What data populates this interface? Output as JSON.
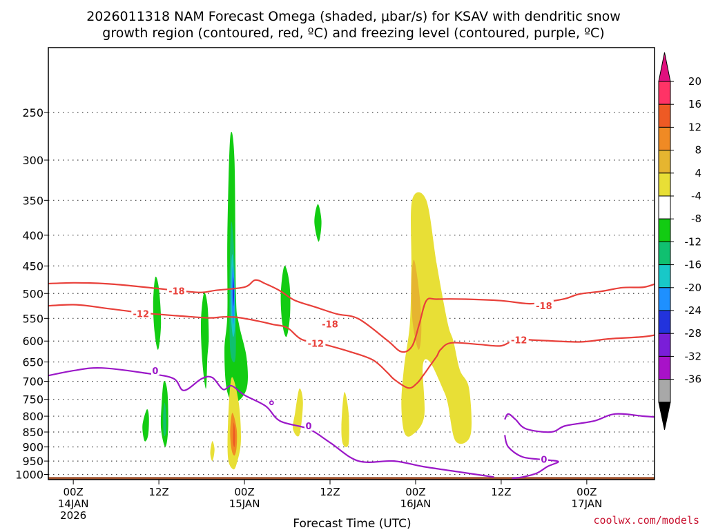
{
  "chart_data": {
    "type": "contour",
    "title_line1": "2026011318 NAM Forecast Omega (shaded, μbar/s) for KSAV with dendritic snow",
    "title_line2": "growth region (contoured, red, ºC) and freezing level (contoured, purple, ºC)",
    "xlabel": "Forecast Time (UTC)",
    "credit": "coolwx.com/models",
    "y_axis": {
      "scale": "log-pressure",
      "ylim": [
        1020,
        195
      ],
      "ticks": [
        250,
        300,
        350,
        400,
        450,
        500,
        550,
        600,
        650,
        700,
        750,
        800,
        850,
        900,
        950,
        1000
      ]
    },
    "x_axis": {
      "xlim": [
        -3.5,
        81.5
      ],
      "ticks": [
        {
          "hour": 0,
          "lines": [
            "00Z",
            "14JAN",
            "2026"
          ]
        },
        {
          "hour": 12,
          "lines": [
            "12Z"
          ]
        },
        {
          "hour": 24,
          "lines": [
            "00Z",
            "15JAN"
          ]
        },
        {
          "hour": 36,
          "lines": [
            "12Z"
          ]
        },
        {
          "hour": 48,
          "lines": [
            "00Z",
            "16JAN"
          ]
        },
        {
          "hour": 60,
          "lines": [
            "12Z"
          ]
        },
        {
          "hour": 72,
          "lines": [
            "00Z",
            "17JAN"
          ]
        }
      ]
    },
    "colorbar": {
      "labels": [
        "20",
        "16",
        "12",
        "8",
        "4",
        "-4",
        "-8",
        "-12",
        "-16",
        "-20",
        "-24",
        "-28",
        "-32",
        "-36"
      ],
      "bins": [
        {
          "range": [
            16,
            20
          ],
          "color": "#ff3366"
        },
        {
          "range": [
            12,
            16
          ],
          "color": "#ee5a24"
        },
        {
          "range": [
            8,
            12
          ],
          "color": "#f08a24"
        },
        {
          "range": [
            4,
            8
          ],
          "color": "#e6b530"
        },
        {
          "range": [
            0,
            4
          ],
          "color": "#e8df36"
        },
        {
          "range": [
            -4,
            4
          ],
          "color": "#ffffff"
        },
        {
          "range": [
            -8,
            -4
          ],
          "color": "#12cc12"
        },
        {
          "range": [
            -12,
            -8
          ],
          "color": "#10c070"
        },
        {
          "range": [
            -16,
            -12
          ],
          "color": "#18c8c8"
        },
        {
          "range": [
            -20,
            -16
          ],
          "color": "#1e90ff"
        },
        {
          "range": [
            -24,
            -20
          ],
          "color": "#2233dd"
        },
        {
          "range": [
            -28,
            -24
          ],
          "color": "#7a1ed8"
        },
        {
          "range": [
            -32,
            -28
          ],
          "color": "#a812c8"
        },
        {
          "range": [
            -36,
            -32
          ],
          "color": "#a8a8a8"
        }
      ],
      "over_color": "#e0107e",
      "under_color": "#000000"
    },
    "omega_regions": [
      {
        "name": "omega-green-column-left",
        "color": "#12cc12",
        "pts": [
          [
            11.5,
            470
          ],
          [
            12.0,
            490
          ],
          [
            12.3,
            560
          ],
          [
            11.9,
            620
          ],
          [
            11.4,
            580
          ],
          [
            11.2,
            520
          ]
        ]
      },
      {
        "name": "omega-green-column-main",
        "color": "#12cc12",
        "pts": [
          [
            22.0,
            275
          ],
          [
            22.6,
            300
          ],
          [
            22.8,
            500
          ],
          [
            23.2,
            560
          ],
          [
            24.3,
            640
          ],
          [
            24.3,
            720
          ],
          [
            22.6,
            760
          ],
          [
            21.5,
            720
          ],
          [
            21.2,
            620
          ],
          [
            21.6,
            540
          ],
          [
            21.6,
            400
          ]
        ]
      },
      {
        "name": "omega-teal-column-main",
        "color": "#10c070",
        "pts": [
          [
            22.2,
            380
          ],
          [
            22.6,
            440
          ],
          [
            22.8,
            600
          ],
          [
            22.6,
            650
          ],
          [
            22.0,
            620
          ],
          [
            21.9,
            500
          ],
          [
            22.0,
            420
          ]
        ]
      },
      {
        "name": "omega-cyan-column-main",
        "color": "#18c8c8",
        "pts": [
          [
            22.3,
            430
          ],
          [
            22.6,
            480
          ],
          [
            22.7,
            560
          ],
          [
            22.4,
            590
          ],
          [
            22.1,
            540
          ],
          [
            22.1,
            470
          ]
        ]
      },
      {
        "name": "omega-blue-column-main",
        "color": "#1e90ff",
        "pts": [
          [
            22.4,
            450
          ],
          [
            22.6,
            500
          ],
          [
            22.5,
            560
          ],
          [
            22.3,
            540
          ],
          [
            22.2,
            490
          ]
        ]
      },
      {
        "name": "omega-darkblue-core",
        "color": "#2233dd",
        "pts": [
          [
            22.45,
            470
          ],
          [
            22.55,
            500
          ],
          [
            22.45,
            525
          ],
          [
            22.35,
            500
          ]
        ]
      },
      {
        "name": "omega-green-column-mid",
        "color": "#12cc12",
        "pts": [
          [
            18.3,
            500
          ],
          [
            18.8,
            520
          ],
          [
            19.0,
            590
          ],
          [
            18.8,
            640
          ],
          [
            18.6,
            720
          ],
          [
            18.1,
            650
          ],
          [
            17.9,
            560
          ]
        ]
      },
      {
        "name": "omega-green-blob-upper",
        "color": "#12cc12",
        "pts": [
          [
            34.3,
            355
          ],
          [
            34.8,
            380
          ],
          [
            34.4,
            410
          ],
          [
            33.8,
            380
          ]
        ]
      },
      {
        "name": "omega-green-blob-right",
        "color": "#12cc12",
        "pts": [
          [
            29.6,
            450
          ],
          [
            30.3,
            480
          ],
          [
            30.4,
            540
          ],
          [
            29.9,
            590
          ],
          [
            29.3,
            560
          ],
          [
            29.1,
            500
          ]
        ]
      },
      {
        "name": "omega-green-lower-left",
        "color": "#12cc12",
        "pts": [
          [
            10.3,
            780
          ],
          [
            10.6,
            800
          ],
          [
            10.5,
            860
          ],
          [
            10.0,
            880
          ],
          [
            9.7,
            830
          ]
        ]
      },
      {
        "name": "omega-green-lower-mid",
        "color": "#12cc12",
        "pts": [
          [
            12.7,
            700
          ],
          [
            13.2,
            730
          ],
          [
            13.3,
            840
          ],
          [
            12.9,
            900
          ],
          [
            12.3,
            840
          ],
          [
            12.4,
            760
          ]
        ]
      },
      {
        "name": "omega-teal-lower-mid",
        "color": "#10c070",
        "pts": [
          [
            12.8,
            760
          ],
          [
            13.0,
            790
          ],
          [
            13.0,
            850
          ],
          [
            12.7,
            860
          ],
          [
            12.6,
            800
          ]
        ]
      },
      {
        "name": "omega-yellow-column-main",
        "color": "#e8df36",
        "pts": [
          [
            22.2,
            690
          ],
          [
            23.2,
            760
          ],
          [
            23.5,
            880
          ],
          [
            22.9,
            960
          ],
          [
            22.4,
            980
          ],
          [
            21.7,
            940
          ],
          [
            21.7,
            820
          ]
        ]
      },
      {
        "name": "omega-orange-column-main",
        "color": "#f08a24",
        "pts": [
          [
            22.3,
            790
          ],
          [
            22.9,
            840
          ],
          [
            22.9,
            900
          ],
          [
            22.6,
            930
          ],
          [
            22.2,
            910
          ],
          [
            22.0,
            850
          ]
        ]
      },
      {
        "name": "omega-red-core-main",
        "color": "#ee5a24",
        "pts": [
          [
            22.5,
            820
          ],
          [
            22.7,
            860
          ],
          [
            22.6,
            900
          ],
          [
            22.4,
            880
          ]
        ]
      },
      {
        "name": "omega-yellow-small-left",
        "color": "#e8df36",
        "pts": [
          [
            19.5,
            880
          ],
          [
            19.8,
            910
          ],
          [
            19.5,
            950
          ],
          [
            19.2,
            920
          ]
        ]
      },
      {
        "name": "omega-yellow-mid-spike",
        "color": "#e8df36",
        "pts": [
          [
            31.7,
            720
          ],
          [
            32.2,
            760
          ],
          [
            31.7,
            860
          ],
          [
            30.8,
            840
          ],
          [
            31.1,
            790
          ]
        ]
      },
      {
        "name": "omega-yellow-narrow-spike",
        "color": "#e8df36",
        "pts": [
          [
            38.0,
            730
          ],
          [
            38.6,
            790
          ],
          [
            38.6,
            890
          ],
          [
            37.8,
            890
          ],
          [
            37.6,
            830
          ]
        ]
      },
      {
        "name": "omega-yellow-large-right",
        "color": "#e8df36",
        "pts": [
          [
            47.5,
            350
          ],
          [
            49.5,
            350
          ],
          [
            51.0,
            450
          ],
          [
            52.5,
            560
          ],
          [
            53.3,
            600
          ],
          [
            54.2,
            670
          ],
          [
            55.5,
            720
          ],
          [
            55.7,
            860
          ],
          [
            53.6,
            880
          ],
          [
            52.5,
            760
          ],
          [
            51.8,
            720
          ],
          [
            50.0,
            650
          ],
          [
            49.0,
            660
          ],
          [
            49.2,
            800
          ],
          [
            47.5,
            860
          ],
          [
            46.4,
            850
          ],
          [
            46.0,
            760
          ],
          [
            46.4,
            660
          ],
          [
            47.2,
            560
          ],
          [
            47.4,
            450
          ]
        ]
      },
      {
        "name": "omega-gold-core-right",
        "color": "#e6b530",
        "pts": [
          [
            47.8,
            440
          ],
          [
            48.6,
            510
          ],
          [
            48.8,
            580
          ],
          [
            48.4,
            620
          ],
          [
            47.6,
            560
          ],
          [
            47.4,
            480
          ]
        ]
      }
    ],
    "freezing_level": {
      "label": "0",
      "color": "#9b18c8",
      "line1": [
        [
          -6,
          695
        ],
        [
          0,
          672
        ],
        [
          4,
          665
        ],
        [
          10,
          678
        ],
        [
          14,
          692
        ],
        [
          15.5,
          725
        ],
        [
          18.0,
          693
        ],
        [
          19.5,
          690
        ],
        [
          21.0,
          722
        ],
        [
          22.2,
          712
        ],
        [
          24.0,
          738
        ],
        [
          27.0,
          770
        ],
        [
          29.0,
          815
        ],
        [
          33.0,
          840
        ],
        [
          36.0,
          885
        ],
        [
          40.0,
          950
        ],
        [
          45.0,
          950
        ],
        [
          49.0,
          970
        ],
        [
          54.0,
          990
        ],
        [
          59.0,
          1010
        ]
      ],
      "line2": [
        [
          60.5,
          810
        ],
        [
          61.0,
          793
        ],
        [
          62.0,
          810
        ],
        [
          63.5,
          840
        ],
        [
          67.0,
          850
        ],
        [
          69.0,
          830
        ],
        [
          73.0,
          815
        ],
        [
          76.0,
          793
        ],
        [
          80.0,
          800
        ],
        [
          83.0,
          805
        ]
      ],
      "line3": [
        [
          60.5,
          860
        ],
        [
          61.0,
          900
        ],
        [
          63.0,
          935
        ],
        [
          66.0,
          945
        ],
        [
          68.0,
          952
        ],
        [
          66.5,
          970
        ],
        [
          65.0,
          995
        ],
        [
          63.0,
          1010
        ],
        [
          61.5,
          1015
        ]
      ],
      "dot": [
        27.8,
        760
      ],
      "labels": [
        [
          11.5,
          672
        ],
        [
          33.0,
          830
        ],
        [
          66.0,
          943
        ]
      ]
    },
    "dendritic_minus12": {
      "label": "-12",
      "color": "#e8403a",
      "line": [
        [
          -6,
          527
        ],
        [
          0,
          522
        ],
        [
          5,
          530
        ],
        [
          10,
          539
        ],
        [
          15,
          545
        ],
        [
          19.0,
          549
        ],
        [
          21.0,
          547
        ],
        [
          23.0,
          548
        ],
        [
          26.0,
          556
        ],
        [
          28.0,
          563
        ],
        [
          30.0,
          570
        ],
        [
          32.0,
          596
        ],
        [
          35.0,
          607
        ],
        [
          39.0,
          626
        ],
        [
          42.0,
          645
        ],
        [
          44.0,
          676
        ],
        [
          45.0,
          695
        ],
        [
          47.0,
          718
        ],
        [
          48.2,
          705
        ],
        [
          49.0,
          686
        ],
        [
          50.2,
          655
        ],
        [
          51.0,
          635
        ],
        [
          51.5,
          620
        ],
        [
          53.0,
          604
        ],
        [
          57.0,
          608
        ],
        [
          60.0,
          611
        ],
        [
          62.0,
          597
        ],
        [
          65.0,
          598
        ],
        [
          71.0,
          602
        ],
        [
          75.0,
          595
        ],
        [
          80.0,
          590
        ],
        [
          83.0,
          582
        ]
      ],
      "labels": [
        [
          9.5,
          540
        ],
        [
          34.0,
          605
        ],
        [
          62.5,
          597
        ]
      ]
    },
    "dendritic_minus18": {
      "label": "-18",
      "color": "#e8403a",
      "line": [
        [
          -6,
          483
        ],
        [
          0,
          480
        ],
        [
          5,
          482
        ],
        [
          10,
          488
        ],
        [
          15,
          495
        ],
        [
          18.0,
          498
        ],
        [
          20.0,
          494
        ],
        [
          24.0,
          488
        ],
        [
          25.5,
          475
        ],
        [
          27.0,
          482
        ],
        [
          29.0,
          495
        ],
        [
          31.0,
          513
        ],
        [
          34.0,
          527
        ],
        [
          37.0,
          541
        ],
        [
          40.0,
          551
        ],
        [
          44.0,
          598
        ],
        [
          46.0,
          625
        ],
        [
          47.5,
          612
        ],
        [
          48.5,
          563
        ],
        [
          49.5,
          514
        ],
        [
          51.0,
          511
        ],
        [
          55.0,
          511
        ],
        [
          60.0,
          514
        ],
        [
          64.0,
          520
        ],
        [
          67.0,
          515
        ],
        [
          69.0,
          510
        ],
        [
          71.0,
          501
        ],
        [
          74.0,
          496
        ],
        [
          77.0,
          489
        ],
        [
          80.0,
          488
        ],
        [
          82.0,
          480
        ]
      ],
      "labels": [
        [
          14.5,
          495
        ],
        [
          36.0,
          562
        ],
        [
          66.0,
          524
        ]
      ]
    },
    "terrain": {
      "top_hpa": 1010,
      "color": "#a0522d"
    }
  }
}
